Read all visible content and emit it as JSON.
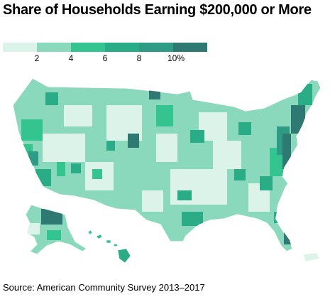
{
  "title": "Share of Households Earning $200,000 or More",
  "legend": {
    "colors": [
      "#dcf3ea",
      "#8ad9bd",
      "#33c48f",
      "#2aad86",
      "#2e9b85",
      "#2e7a72"
    ],
    "ticks": [
      "2",
      "4",
      "6",
      "8",
      "10%"
    ]
  },
  "regions": [
    {
      "name": "Contiguous United States",
      "level": "mixed"
    },
    {
      "name": "Alaska",
      "level": "mixed"
    },
    {
      "name": "Hawaii",
      "level": "mixed"
    },
    {
      "name": "Puerto Rico",
      "level": "lowest"
    }
  ],
  "source": "Source: American Community Survey 2013–2017"
}
